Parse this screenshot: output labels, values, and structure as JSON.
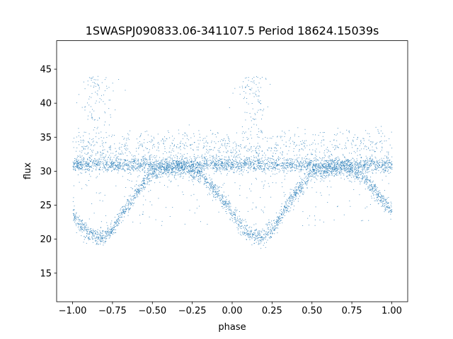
{
  "chart_data": {
    "type": "scatter",
    "title": "1SWASPJ090833.06-341107.5 Period 18624.15039s",
    "xlabel": "phase",
    "ylabel": "flux",
    "xlim": [
      -1.1,
      1.1
    ],
    "ylim": [
      10.8,
      49.2
    ],
    "xticks": [
      -1.0,
      -0.75,
      -0.5,
      -0.25,
      0.0,
      0.25,
      0.5,
      0.75,
      1.0
    ],
    "xtick_labels": [
      "−1.00",
      "−0.75",
      "−0.50",
      "−0.25",
      "0.00",
      "0.25",
      "0.50",
      "0.75",
      "1.00"
    ],
    "yticks": [
      15,
      20,
      25,
      30,
      35,
      40,
      45
    ],
    "ytick_labels": [
      "15",
      "20",
      "25",
      "30",
      "35",
      "40",
      "45"
    ],
    "grid": false,
    "marker_color": "#1f77b4",
    "series": [
      {
        "name": "",
        "description_points": [
          {
            "phase": -1.0,
            "flux": 24.0
          },
          {
            "phase": -0.95,
            "flux": 22.0
          },
          {
            "phase": -0.9,
            "flux": 20.8
          },
          {
            "phase": -0.85,
            "flux": 20.4
          },
          {
            "phase": -0.8,
            "flux": 20.4
          },
          {
            "phase": -0.75,
            "flux": 21.5
          },
          {
            "phase": -0.7,
            "flux": 23.5
          },
          {
            "phase": -0.6,
            "flux": 27.0
          },
          {
            "phase": -0.5,
            "flux": 29.8
          },
          {
            "phase": -0.3,
            "flux": 30.5
          },
          {
            "phase": -0.2,
            "flux": 29.5
          },
          {
            "phase": -0.1,
            "flux": 27.0
          },
          {
            "phase": 0.0,
            "flux": 24.0
          },
          {
            "phase": 0.05,
            "flux": 22.0
          },
          {
            "phase": 0.1,
            "flux": 20.8
          },
          {
            "phase": 0.15,
            "flux": 20.4
          },
          {
            "phase": 0.2,
            "flux": 20.4
          },
          {
            "phase": 0.25,
            "flux": 21.5
          },
          {
            "phase": 0.3,
            "flux": 23.5
          },
          {
            "phase": 0.4,
            "flux": 27.0
          },
          {
            "phase": 0.5,
            "flux": 29.8
          },
          {
            "phase": 0.7,
            "flux": 30.5
          },
          {
            "phase": 0.8,
            "flux": 29.5
          },
          {
            "phase": 0.9,
            "flux": 27.0
          },
          {
            "phase": 1.0,
            "flux": 24.0
          }
        ],
        "flat_band_flux": 31.0,
        "upper_band_flux": 33.5,
        "peak_cluster": [
          {
            "phase": -0.85,
            "flux": 44.0
          },
          {
            "phase": 0.13,
            "flux": 44.0
          }
        ]
      }
    ]
  }
}
